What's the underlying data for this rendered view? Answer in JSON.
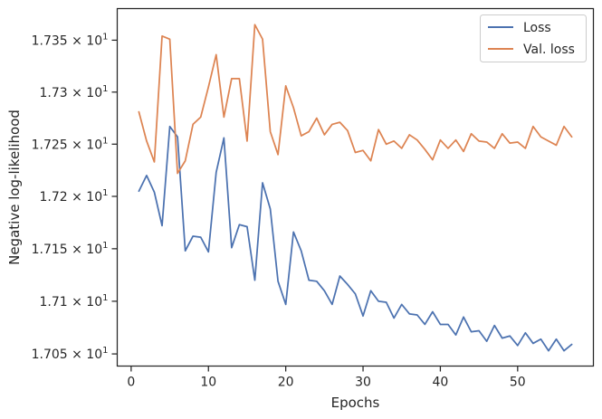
{
  "chart_data": {
    "type": "line",
    "title": "",
    "xlabel": "Epochs",
    "ylabel": "Negative log-likelihood",
    "xlim": [
      -1.8,
      59.8
    ],
    "ylim": [
      17.0385,
      17.3805
    ],
    "yscale": "log",
    "grid": false,
    "legend_position": "top-right",
    "x_ticks": [
      {
        "value": 0,
        "label": "0"
      },
      {
        "value": 10,
        "label": "10"
      },
      {
        "value": 20,
        "label": "20"
      },
      {
        "value": 30,
        "label": "30"
      },
      {
        "value": 40,
        "label": "40"
      },
      {
        "value": 50,
        "label": "50"
      }
    ],
    "y_ticks": [
      {
        "value": 17.05,
        "mantissa": "1.705",
        "base": "10",
        "exp": "1"
      },
      {
        "value": 17.1,
        "mantissa": "1.71",
        "base": "10",
        "exp": "1"
      },
      {
        "value": 17.15,
        "mantissa": "1.715",
        "base": "10",
        "exp": "1"
      },
      {
        "value": 17.2,
        "mantissa": "1.72",
        "base": "10",
        "exp": "1"
      },
      {
        "value": 17.25,
        "mantissa": "1.725",
        "base": "10",
        "exp": "1"
      },
      {
        "value": 17.3,
        "mantissa": "1.73",
        "base": "10",
        "exp": "1"
      },
      {
        "value": 17.35,
        "mantissa": "1.735",
        "base": "10",
        "exp": "1"
      }
    ],
    "x": [
      1,
      2,
      3,
      4,
      5,
      6,
      7,
      8,
      9,
      10,
      11,
      12,
      13,
      14,
      15,
      16,
      17,
      18,
      19,
      20,
      21,
      22,
      23,
      24,
      25,
      26,
      27,
      28,
      29,
      30,
      31,
      32,
      33,
      34,
      35,
      36,
      37,
      38,
      39,
      40,
      41,
      42,
      43,
      44,
      45,
      46,
      47,
      48,
      49,
      50,
      51,
      52,
      53,
      54,
      55,
      56,
      57
    ],
    "series": [
      {
        "name": "Loss",
        "color": "#4c72b0",
        "values": [
          17.205,
          17.22,
          17.204,
          17.172,
          17.267,
          17.257,
          17.148,
          17.162,
          17.161,
          17.147,
          17.223,
          17.256,
          17.151,
          17.173,
          17.171,
          17.12,
          17.213,
          17.188,
          17.119,
          17.097,
          17.166,
          17.148,
          17.12,
          17.119,
          17.11,
          17.097,
          17.124,
          17.116,
          17.107,
          17.086,
          17.11,
          17.1,
          17.099,
          17.084,
          17.097,
          17.088,
          17.087,
          17.078,
          17.09,
          17.078,
          17.078,
          17.068,
          17.085,
          17.071,
          17.072,
          17.062,
          17.077,
          17.065,
          17.067,
          17.058,
          17.07,
          17.06,
          17.064,
          17.053,
          17.064,
          17.053,
          17.059
        ]
      },
      {
        "name": "Val. loss",
        "color": "#dd8452",
        "values": [
          17.281,
          17.253,
          17.233,
          17.354,
          17.351,
          17.222,
          17.234,
          17.269,
          17.276,
          17.305,
          17.336,
          17.276,
          17.313,
          17.313,
          17.253,
          17.365,
          17.351,
          17.262,
          17.24,
          17.306,
          17.285,
          17.258,
          17.262,
          17.275,
          17.259,
          17.269,
          17.271,
          17.263,
          17.242,
          17.244,
          17.234,
          17.264,
          17.25,
          17.253,
          17.246,
          17.259,
          17.254,
          17.245,
          17.235,
          17.254,
          17.246,
          17.254,
          17.243,
          17.26,
          17.253,
          17.252,
          17.246,
          17.26,
          17.251,
          17.252,
          17.246,
          17.267,
          17.257,
          17.253,
          17.249,
          17.267,
          17.257
        ]
      }
    ]
  }
}
